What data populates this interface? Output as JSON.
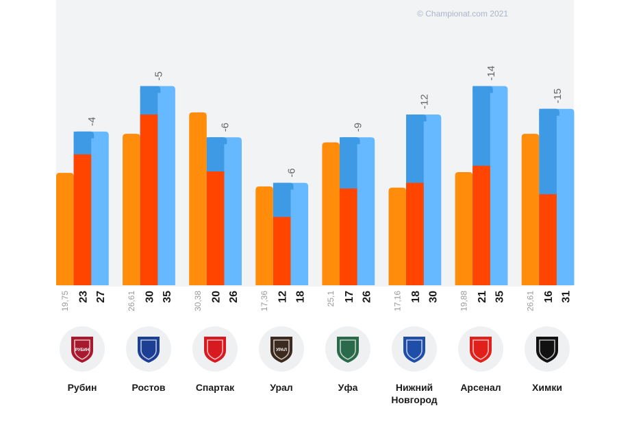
{
  "copyright": "© Championat.com 2021",
  "colors": {
    "orange": "#ff8c0a",
    "red": "#ff4500",
    "blue_dark": "#3f9ae6",
    "blue_light": "#66b8ff",
    "diff_text": "#666666",
    "label_small": "#9a9a9a",
    "label_bold": "#1a1a1a"
  },
  "chart_data": {
    "type": "bar",
    "title": "",
    "xlabel": "",
    "ylabel": "",
    "categories": [
      "Рубин",
      "Ростов",
      "Спартак",
      "Урал",
      "Уфа",
      "Нижний Новгород",
      "Арсенал",
      "Химки"
    ],
    "series": [
      {
        "values": [
          19.75,
          26.61,
          30.38,
          17.36,
          25.1,
          17.16,
          19.88,
          26.61
        ]
      },
      {
        "values": [
          23,
          30,
          20,
          12,
          17,
          18,
          21,
          16
        ]
      },
      {
        "values": [
          27,
          35,
          26,
          18,
          26,
          30,
          35,
          31
        ]
      }
    ],
    "value_labels": [
      [
        "19,75",
        "23",
        "27"
      ],
      [
        "26,61",
        "30",
        "35"
      ],
      [
        "30,38",
        "20",
        "26"
      ],
      [
        "17,36",
        "12",
        "18"
      ],
      [
        "25,1",
        "17",
        "26"
      ],
      [
        "17,16",
        "18",
        "30"
      ],
      [
        "19,88",
        "21",
        "35"
      ],
      [
        "26,61",
        "16",
        "31"
      ]
    ],
    "differences": [
      "-4",
      "-5",
      "-6",
      "-6",
      "-9",
      "-12",
      "-14",
      "-15"
    ],
    "ylim": [
      0,
      35
    ]
  },
  "clubs": [
    {
      "name_lines": [
        "Рубин"
      ],
      "logo_icon": "rubin-logo-icon",
      "logo_color": "#a6192e",
      "logo_text": "РУБИН"
    },
    {
      "name_lines": [
        "Ростов"
      ],
      "logo_icon": "rostov-logo-icon",
      "logo_color": "#1c3f94",
      "logo_text": ""
    },
    {
      "name_lines": [
        "Спартак"
      ],
      "logo_icon": "spartak-logo-icon",
      "logo_color": "#d71920",
      "logo_text": ""
    },
    {
      "name_lines": [
        "Урал"
      ],
      "logo_icon": "ural-logo-icon",
      "logo_color": "#3d2a1e",
      "logo_text": "УРАЛ"
    },
    {
      "name_lines": [
        "Уфа"
      ],
      "logo_icon": "ufa-logo-icon",
      "logo_color": "#2a6a4a",
      "logo_text": ""
    },
    {
      "name_lines": [
        "Нижний",
        "Новгород"
      ],
      "logo_icon": "nizhny-novgorod-logo-icon",
      "logo_color": "#1e4ea8",
      "logo_text": ""
    },
    {
      "name_lines": [
        "Арсенал"
      ],
      "logo_icon": "arsenal-logo-icon",
      "logo_color": "#e0201b",
      "logo_text": ""
    },
    {
      "name_lines": [
        "Химки"
      ],
      "logo_icon": "khimki-logo-icon",
      "logo_color": "#111111",
      "logo_text": ""
    }
  ]
}
